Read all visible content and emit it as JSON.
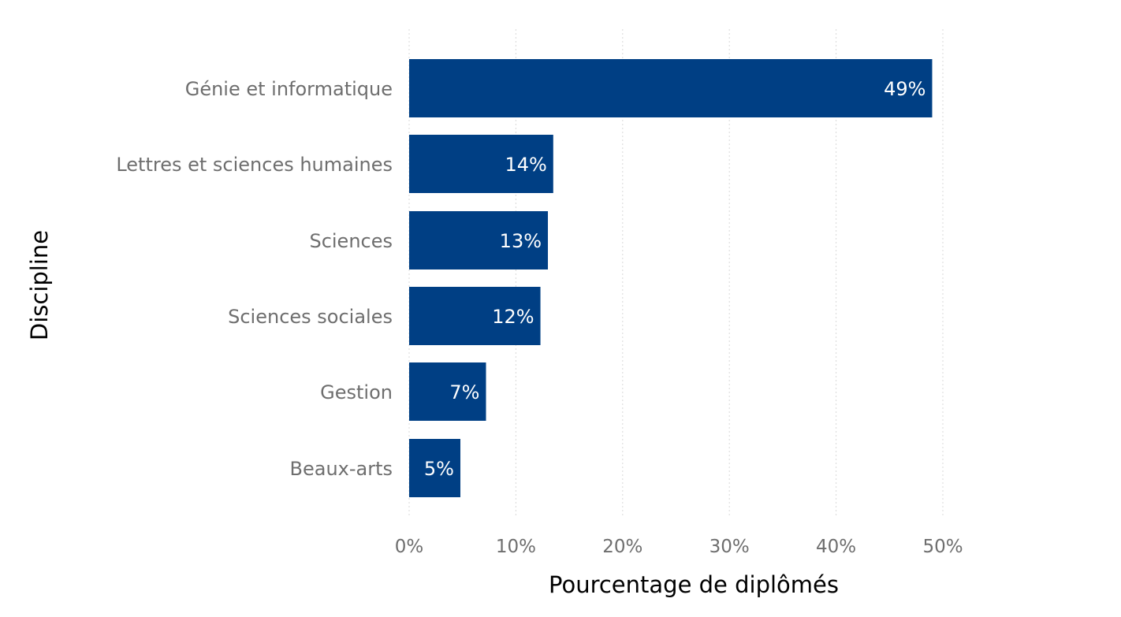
{
  "chart_data": {
    "type": "bar",
    "orientation": "horizontal",
    "categories": [
      "Génie et informatique",
      "Lettres et sciences humaines",
      "Sciences",
      "Sciences sociales",
      "Gestion",
      "Beaux-arts"
    ],
    "values": [
      49,
      13.5,
      13,
      12.3,
      7.2,
      4.8
    ],
    "data_labels": [
      "49%",
      "14%",
      "13%",
      "12%",
      "7%",
      "5%"
    ],
    "xlabel": "Pourcentage de diplômés",
    "ylabel": "Discipline",
    "xlim": [
      0,
      50
    ],
    "x_ticks": [
      0,
      10,
      20,
      30,
      40,
      50
    ],
    "x_tick_labels": [
      "0%",
      "10%",
      "20%",
      "30%",
      "40%",
      "50%"
    ],
    "grid": "vertical dotted",
    "bar_color": "#003F84",
    "label_color": "#ffffff",
    "tick_color": "#6e6e6e"
  }
}
